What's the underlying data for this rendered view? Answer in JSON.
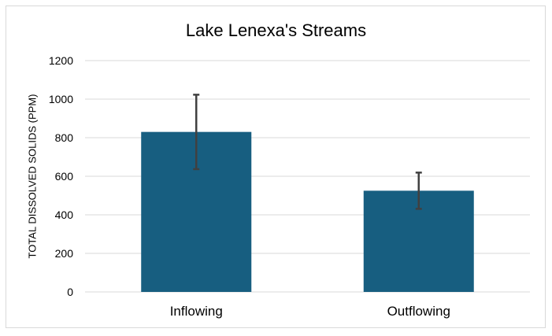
{
  "chart_data": {
    "type": "bar",
    "title": "Lake Lenexa's Streams",
    "xlabel": "",
    "ylabel": "TOTAL DISSOLVED SOLIDS (PPM)",
    "categories": [
      "Inflowing",
      "Outflowing"
    ],
    "values": [
      830,
      525
    ],
    "error": [
      193,
      94
    ],
    "ylim": [
      0,
      1200
    ],
    "yticks": [
      0,
      200,
      400,
      600,
      800,
      1000,
      1200
    ],
    "grid": true,
    "bar_color": "#175e80",
    "error_color": "#404040"
  }
}
